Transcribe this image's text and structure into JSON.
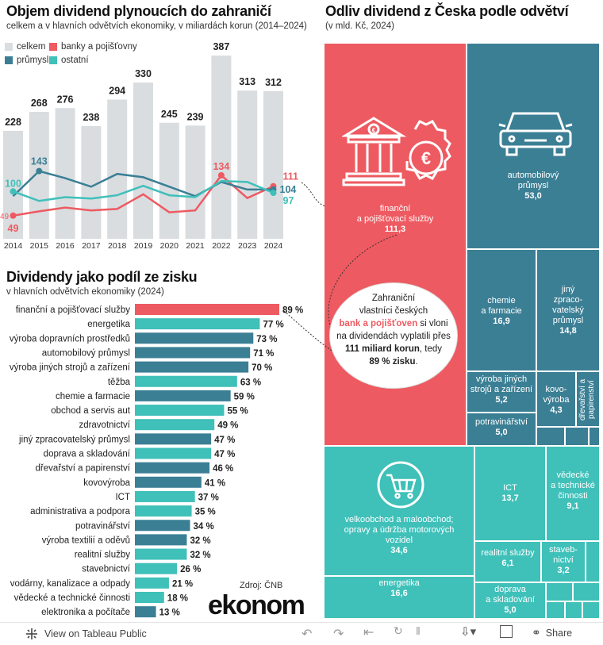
{
  "colors": {
    "celkem": "#d9dde0",
    "banky": "#ee5a61",
    "prumysl": "#3b7f95",
    "ostatni": "#3fc0b9",
    "treemap_red": "#ee5a61",
    "treemap_teal": "#3fc0b9",
    "treemap_blue": "#3b7f95"
  },
  "chart_data": [
    {
      "type": "bar+line",
      "title": "Objem dividend plynoucích do zahraničí",
      "subtitle": "celkem a v hlavních odvětvích ekonomiky, v miliardách korun (2014–2024)",
      "legend": [
        "celkem",
        "banky a pojišťovny",
        "průmysl",
        "ostatní"
      ],
      "categories": [
        "2014",
        "2015",
        "2016",
        "2017",
        "2018",
        "2019",
        "2020",
        "2021",
        "2022",
        "2023",
        "2024"
      ],
      "total": [
        228,
        268,
        276,
        238,
        294,
        330,
        245,
        239,
        387,
        313,
        312
      ],
      "series": [
        {
          "name": "banky a pojišťovny",
          "values": [
            49,
            58,
            66,
            60,
            63,
            94,
            56,
            60,
            134,
            86,
            111
          ]
        },
        {
          "name": "průmysl",
          "values": [
            90,
            143,
            128,
            110,
            137,
            130,
            110,
            90,
            120,
            104,
            104
          ]
        },
        {
          "name": "ostatní",
          "values": [
            100,
            80,
            88,
            85,
            92,
            112,
            92,
            88,
            122,
            120,
            97
          ]
        }
      ],
      "ylim": [
        0,
        400
      ],
      "annotations": {
        "first": {
          "banky": "49",
          "prumysl_label": "100"
        },
        "prumysl_2015": "143",
        "banky_2022": "134",
        "last": {
          "banky": "111",
          "prumysl": "104",
          "ostatni": "97"
        },
        "left_edge_label": "49"
      }
    },
    {
      "type": "bar",
      "title": "Dividendy jako podíl ze zisku",
      "subtitle": "v hlavních odvětvích ekonomiky (2024)",
      "unit": "%",
      "xlim": [
        0,
        100
      ],
      "categories": [
        "finanční a pojišťovací služby",
        "energetika",
        "výroba dopravních prostředků",
        "automobilový průmysl",
        "výroba jiných strojů a zařízení",
        "těžba",
        "chemie a farmacie",
        "obchod a servis aut",
        "zdravotnictví",
        "jiný zpracovatelský průmysl",
        "doprava a skladování",
        "dřevařství a papirenství",
        "kovovýroba",
        "ICT",
        "administrativa a podpora",
        "potravinářství",
        "výroba textilií a oděvů",
        "realitní služby",
        "stavebnictví",
        "vodárny, kanalizace a odpady",
        "vědecké a technické činnosti",
        "elektronika a počítače"
      ],
      "values": [
        89,
        77,
        73,
        71,
        70,
        63,
        59,
        55,
        49,
        47,
        47,
        46,
        41,
        37,
        35,
        34,
        32,
        32,
        26,
        21,
        18,
        13
      ],
      "value_labels": [
        "89 %",
        "77 %",
        "73 %",
        "71 %",
        "70 %",
        "63 %",
        "59 %",
        "55 %",
        "49 %",
        "47 %",
        "47 %",
        "46 %",
        "41 %",
        "37 %",
        "35 %",
        "34 %",
        "32 %",
        "32 %",
        "26 %",
        "21 %",
        "18 %",
        "13 %"
      ],
      "groups": [
        "banky",
        "ostatni",
        "prumysl",
        "prumysl",
        "prumysl",
        "ostatni",
        "prumysl",
        "ostatni",
        "ostatni",
        "prumysl",
        "ostatni",
        "prumysl",
        "prumysl",
        "ostatni",
        "ostatni",
        "prumysl",
        "prumysl",
        "ostatni",
        "ostatni",
        "ostatni",
        "ostatni",
        "prumysl"
      ]
    },
    {
      "type": "treemap",
      "title": "Odliv dividend z Česka podle odvětví",
      "subtitle": "(v mld. Kč, 2024)",
      "items": [
        {
          "name": "finanční a pojišťovací služby",
          "value": "111,3",
          "group": "banky"
        },
        {
          "name": "automobilový průmysl",
          "value": "53,0",
          "group": "prumysl"
        },
        {
          "name": "chemie a farmacie",
          "value": "16,9",
          "group": "prumysl"
        },
        {
          "name": "jiný zpracovatelský průmysl",
          "value": "14,8",
          "group": "prumysl"
        },
        {
          "name": "výroba jiných strojů a zařízení",
          "value": "5,2",
          "group": "prumysl"
        },
        {
          "name": "kovovýroba",
          "value": "4,3",
          "group": "prumysl"
        },
        {
          "name": "dřevařství a papirenství",
          "value": "",
          "group": "prumysl"
        },
        {
          "name": "potravinářství",
          "value": "5,0",
          "group": "prumysl"
        },
        {
          "name": "velkoobchod a maloobchod; opravy a údržba motorových vozidel",
          "value": "34,6",
          "group": "ostatni"
        },
        {
          "name": "ICT",
          "value": "13,7",
          "group": "ostatni"
        },
        {
          "name": "vědecké a technické činnosti",
          "value": "9,1",
          "group": "ostatni"
        },
        {
          "name": "energetika",
          "value": "16,6",
          "group": "ostatni"
        },
        {
          "name": "realitní služby",
          "value": "6,1",
          "group": "ostatni"
        },
        {
          "name": "stavebnictví",
          "value": "3,2",
          "group": "ostatni"
        },
        {
          "name": "doprava a skladování",
          "value": "5,0",
          "group": "ostatni"
        }
      ]
    }
  ],
  "callout": {
    "l1": "Zahraniční",
    "l2": "vlastníci českých",
    "l3a": "bank a pojišťoven",
    "l3b": " si vloni",
    "l4": "na dividendách vyplatili přes",
    "l5a": "111 miliard korun",
    "l5b": ", tedy",
    "l6a": "89 % zisku",
    "l6b": "."
  },
  "treemap_labels": {
    "fin_name": "finanční a pojišťovací služby",
    "fin_l1": "finanční",
    "fin_l2": "a pojišťovací služby",
    "auto_l1": "automobilový",
    "auto_l2": "průmysl",
    "chem_l1": "chemie",
    "chem_l2": "a farmacie",
    "jiny_l1": "jiný",
    "jiny_l2": "zpraco-",
    "jiny_l3": "vatelský",
    "jiny_l4": "průmysl",
    "stroje_l1": "výroba jiných",
    "stroje_l2": "strojů a zařízení",
    "kovo_l1": "kovo-",
    "kovo_l2": "výroba",
    "drevo": "dřevařství a papirenství",
    "potr": "potravinářství",
    "velko_l1": "velkoobchod a maloobchod;",
    "velko_l2": "opravy a údržba motorových",
    "velko_l3": "vozidel",
    "ict": "ICT",
    "ved_l1": "vědecké",
    "ved_l2": "a technické",
    "ved_l3": "činnosti",
    "ener": "energetika",
    "real": "realitní služby",
    "stav_l1": "staveb-",
    "stav_l2": "nictví",
    "dopr_l1": "doprava",
    "dopr_l2": "a skladování"
  },
  "source": "Zdroj: ČNB",
  "brand": "ekonom",
  "footer": {
    "view_label": "View on Tableau Public",
    "share_label": "Share"
  }
}
